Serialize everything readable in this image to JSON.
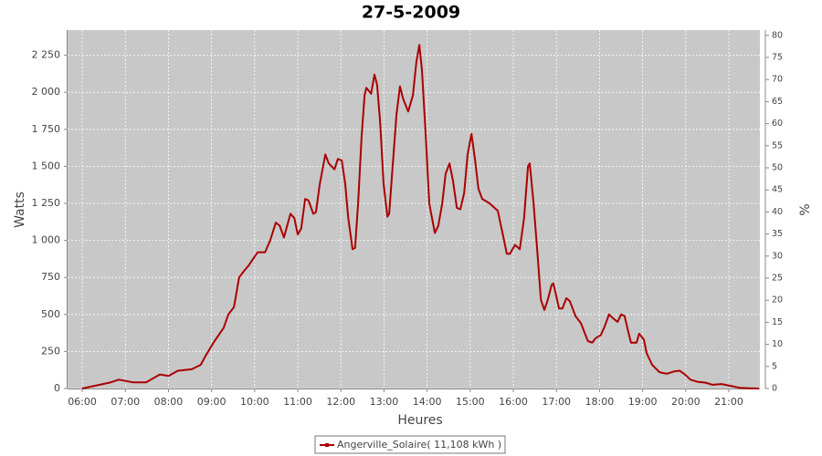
{
  "chart_data": {
    "type": "line",
    "title": "27-5-2009",
    "x_label": "Heures",
    "y_label": "Watts",
    "y2_label": "%",
    "x": [
      6.0,
      6.64,
      6.85,
      7.17,
      7.48,
      7.8,
      8.0,
      8.22,
      8.54,
      8.75,
      8.86,
      9.07,
      9.28,
      9.39,
      9.52,
      9.64,
      9.77,
      9.86,
      10.07,
      10.24,
      10.36,
      10.49,
      10.58,
      10.68,
      10.83,
      10.92,
      11.0,
      11.08,
      11.17,
      11.25,
      11.36,
      11.42,
      11.51,
      11.64,
      11.72,
      11.85,
      11.93,
      12.02,
      12.1,
      12.17,
      12.27,
      12.33,
      12.4,
      12.48,
      12.55,
      12.59,
      12.7,
      12.78,
      12.84,
      12.91,
      12.99,
      13.08,
      13.12,
      13.2,
      13.29,
      13.37,
      13.44,
      13.56,
      13.67,
      13.75,
      13.82,
      13.88,
      13.97,
      14.05,
      14.18,
      14.26,
      14.35,
      14.43,
      14.52,
      14.6,
      14.69,
      14.77,
      14.86,
      14.94,
      15.03,
      15.11,
      15.19,
      15.28,
      15.45,
      15.64,
      15.75,
      15.85,
      15.92,
      16.04,
      16.15,
      16.25,
      16.34,
      16.38,
      16.47,
      16.55,
      16.64,
      16.72,
      16.8,
      16.89,
      16.93,
      17.06,
      17.14,
      17.23,
      17.31,
      17.44,
      17.57,
      17.73,
      17.83,
      17.91,
      18.03,
      18.12,
      18.22,
      18.33,
      18.42,
      18.5,
      18.58,
      18.67,
      18.73,
      18.86,
      18.92,
      19.03,
      19.09,
      19.22,
      19.39,
      19.56,
      19.73,
      19.86,
      19.98,
      20.11,
      20.28,
      20.45,
      20.62,
      20.83,
      21.04,
      21.25,
      21.47,
      21.7
    ],
    "series": [
      {
        "name": "Angerville_Solaire( 11,108 kWh )",
        "color": "#aa0000",
        "values": [
          0,
          40,
          60,
          42,
          42,
          95,
          85,
          120,
          130,
          160,
          220,
          320,
          410,
          500,
          550,
          750,
          800,
          830,
          920,
          920,
          1000,
          1120,
          1100,
          1020,
          1180,
          1150,
          1040,
          1080,
          1280,
          1270,
          1180,
          1190,
          1380,
          1580,
          1520,
          1480,
          1550,
          1540,
          1380,
          1150,
          940,
          950,
          1250,
          1700,
          1980,
          2030,
          1990,
          2120,
          2050,
          1800,
          1380,
          1160,
          1180,
          1500,
          1850,
          2040,
          1960,
          1870,
          1980,
          2200,
          2320,
          2150,
          1700,
          1250,
          1050,
          1100,
          1250,
          1450,
          1520,
          1400,
          1220,
          1210,
          1320,
          1580,
          1720,
          1550,
          1350,
          1280,
          1250,
          1200,
          1050,
          910,
          910,
          970,
          940,
          1150,
          1500,
          1520,
          1250,
          950,
          600,
          530,
          600,
          700,
          710,
          540,
          540,
          610,
          590,
          490,
          440,
          320,
          310,
          340,
          360,
          420,
          500,
          470,
          450,
          500,
          490,
          380,
          310,
          310,
          370,
          330,
          240,
          160,
          110,
          100,
          115,
          120,
          95,
          60,
          45,
          40,
          25,
          30,
          18,
          5,
          2,
          0
        ]
      }
    ],
    "xlim": [
      5.66,
      21.72
    ],
    "xticks": [
      {
        "value": 6,
        "label": "06:00"
      },
      {
        "value": 7,
        "label": "07:00"
      },
      {
        "value": 8,
        "label": "08:00"
      },
      {
        "value": 9,
        "label": "09:00"
      },
      {
        "value": 10,
        "label": "10:00"
      },
      {
        "value": 11,
        "label": "11:00"
      },
      {
        "value": 12,
        "label": "12:00"
      },
      {
        "value": 13,
        "label": "13:00"
      },
      {
        "value": 14,
        "label": "14:00"
      },
      {
        "value": 15,
        "label": "15:00"
      },
      {
        "value": 16,
        "label": "16:00"
      },
      {
        "value": 17,
        "label": "17:00"
      },
      {
        "value": 18,
        "label": "18:00"
      },
      {
        "value": 19,
        "label": "19:00"
      },
      {
        "value": 20,
        "label": "20:00"
      },
      {
        "value": 21,
        "label": "21:00"
      }
    ],
    "ylim": [
      0,
      2420
    ],
    "yticks": [
      0,
      250,
      500,
      750,
      {
        "value": 1000,
        "label": "1 000"
      },
      {
        "value": 1250,
        "label": "1 250"
      },
      {
        "value": 1500,
        "label": "1 500"
      },
      {
        "value": 1750,
        "label": "1 750"
      },
      {
        "value": 2000,
        "label": "2 000"
      },
      {
        "value": 2250,
        "label": "2 250"
      }
    ],
    "y2lim": [
      0,
      81.2
    ],
    "y2ticks": [
      0,
      5,
      10,
      15,
      20,
      25,
      30,
      35,
      40,
      45,
      50,
      55,
      60,
      65,
      70,
      75,
      80
    ],
    "grid": true,
    "legend": "bottom"
  }
}
